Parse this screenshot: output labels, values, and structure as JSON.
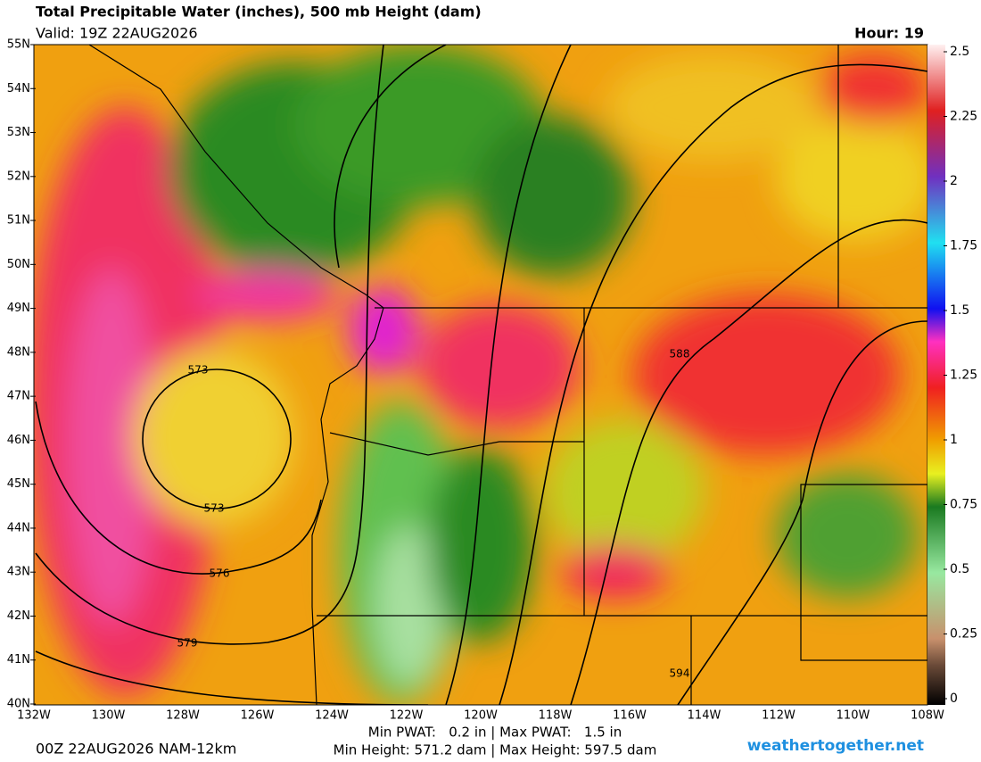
{
  "header": {
    "title": "Total Precipitable Water (inches), 500 mb Height (dam)",
    "valid": "Valid: 19Z 22AUG2026",
    "hour": "Hour: 19"
  },
  "lat_labels": [
    "55N",
    "54N",
    "53N",
    "52N",
    "51N",
    "50N",
    "49N",
    "48N",
    "47N",
    "46N",
    "45N",
    "44N",
    "43N",
    "42N",
    "41N",
    "40N"
  ],
  "lon_labels": [
    "132W",
    "130W",
    "128W",
    "126W",
    "124W",
    "122W",
    "120W",
    "118W",
    "116W",
    "114W",
    "112W",
    "110W",
    "108W"
  ],
  "colorbar": {
    "range": [
      0,
      2.5
    ],
    "ticks": [
      0,
      0.25,
      0.5,
      0.75,
      1,
      1.25,
      1.5,
      1.75,
      2,
      2.25,
      2.5
    ]
  },
  "contour_labels": [
    "573",
    "573",
    "576",
    "579",
    "588",
    "594"
  ],
  "footer": {
    "run": "00Z 22AUG2026 NAM-12km",
    "pwat": "Min PWAT:   0.2 in | Max PWAT:   1.5 in",
    "height": "Min Height: 571.2 dam | Max Height: 597.5 dam",
    "site": "weathertogether.net"
  }
}
